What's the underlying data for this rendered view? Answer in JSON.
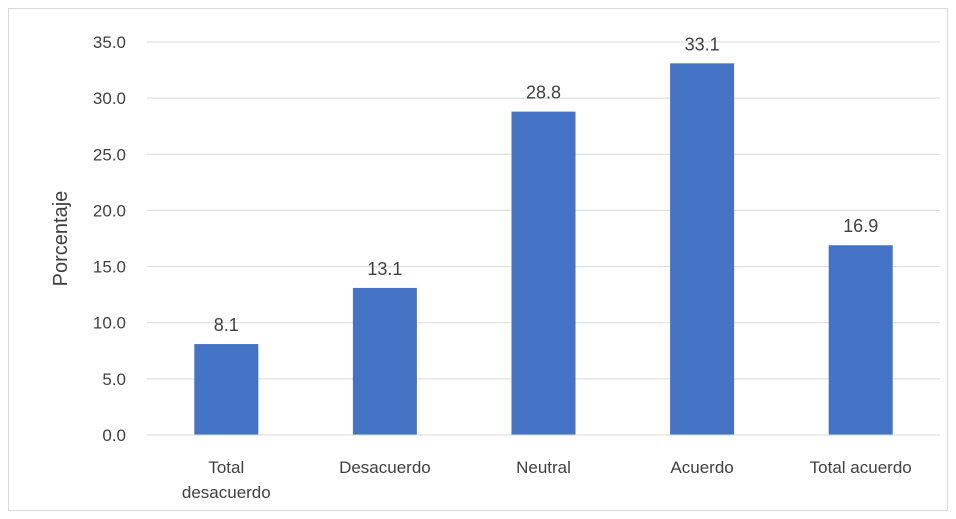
{
  "chart_data": {
    "type": "bar",
    "categories": [
      [
        "Total",
        "desacuerdo"
      ],
      [
        "Desacuerdo"
      ],
      [
        "Neutral"
      ],
      [
        "Acuerdo"
      ],
      [
        "Total acuerdo"
      ]
    ],
    "values": [
      8.1,
      13.1,
      28.8,
      33.1,
      16.9
    ],
    "data_labels": [
      "8.1",
      "13.1",
      "28.8",
      "33.1",
      "16.9"
    ],
    "title": "",
    "xlabel": "",
    "ylabel": "Porcentaje",
    "ylim": [
      0,
      35
    ],
    "yticks": [
      "0.0",
      "5.0",
      "10.0",
      "15.0",
      "20.0",
      "25.0",
      "30.0",
      "35.0"
    ],
    "grid": true,
    "legend": "none",
    "bar_color": "#4472c4",
    "grid_color": "#d9d9d9"
  }
}
